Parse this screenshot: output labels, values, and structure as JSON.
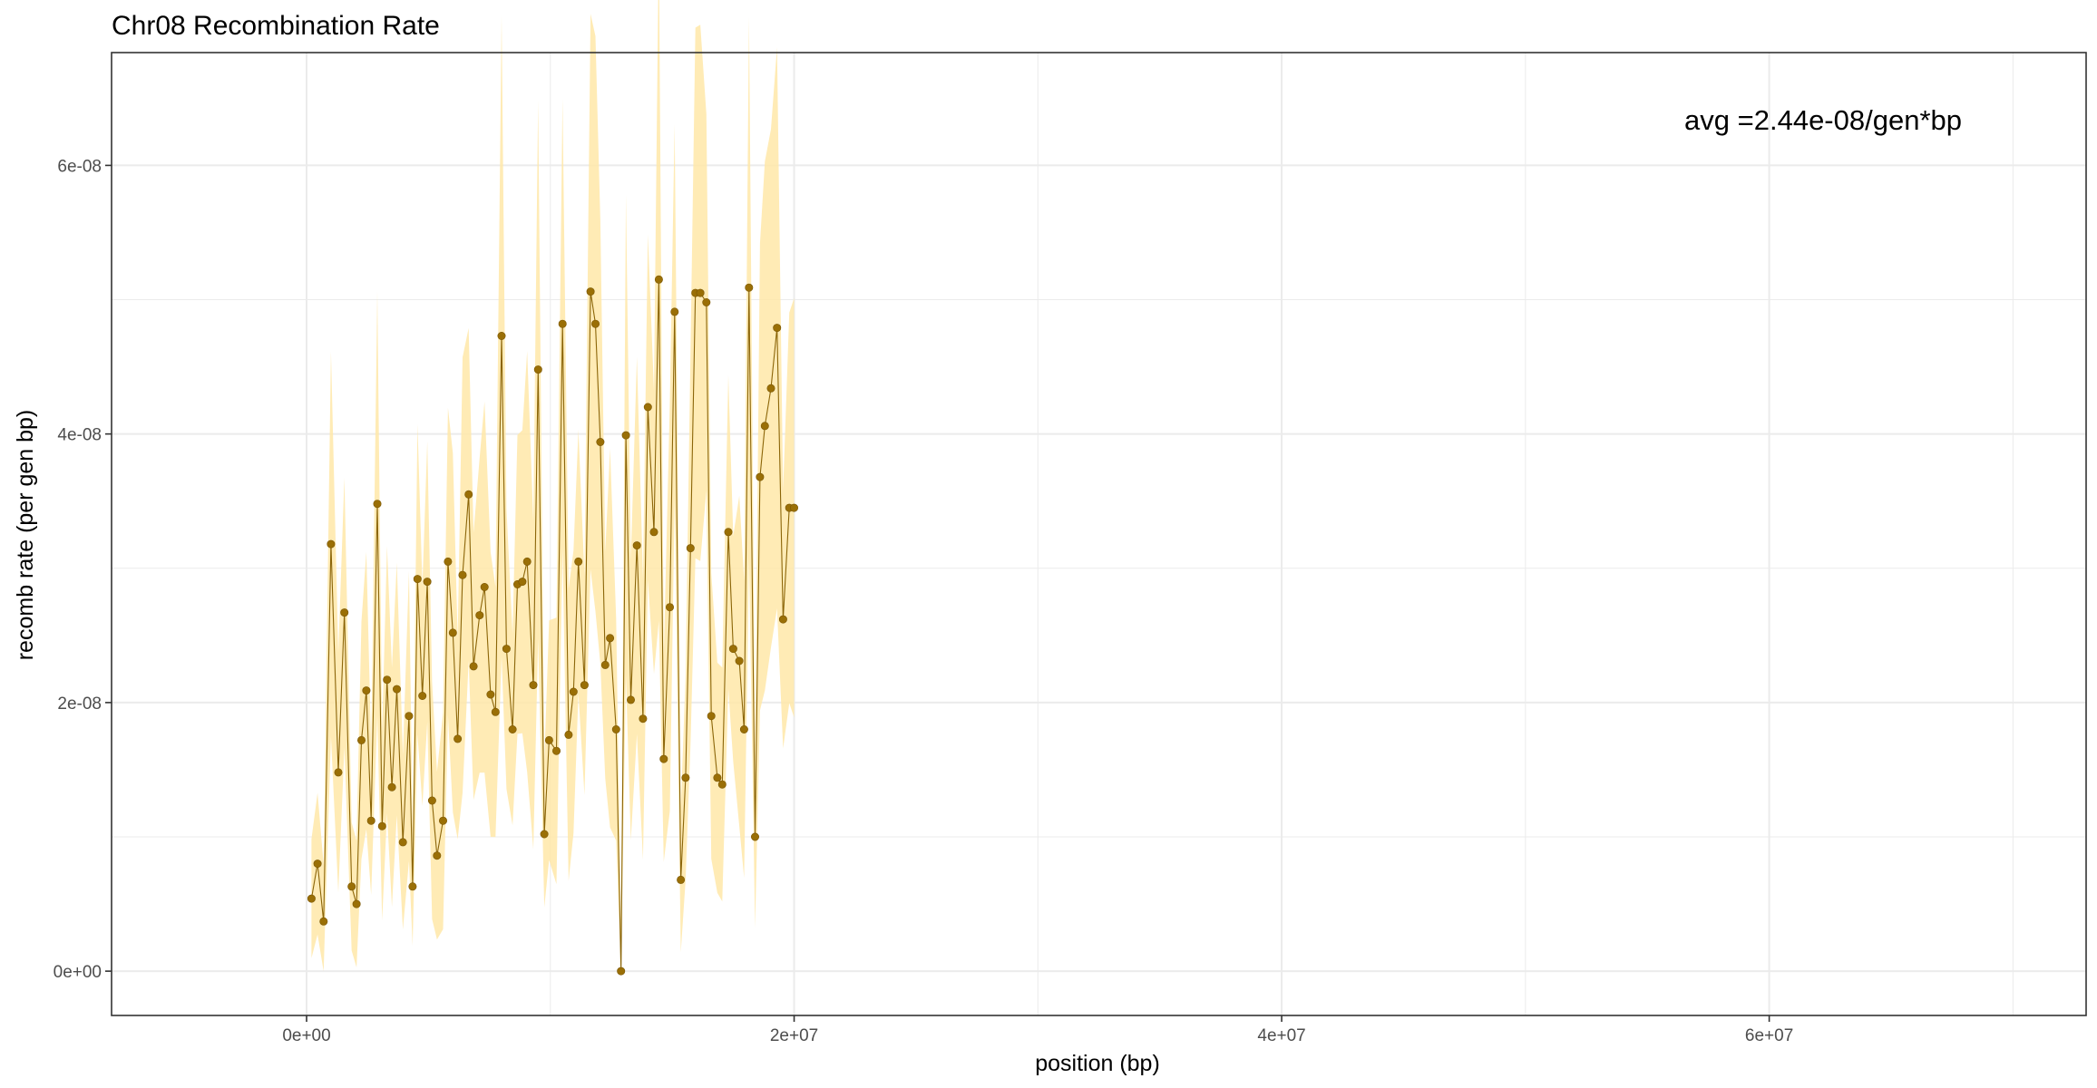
{
  "chart_data": {
    "type": "line",
    "title": "Chr08 Recombination Rate",
    "xlabel": "position (bp)",
    "ylabel": "recomb rate (per gen bp)",
    "annotation": "avg =2.44e-08/gen*bp",
    "xlim": [
      -8000000,
      73000000
    ],
    "ylim": [
      -3.3e-09,
      6.84e-08
    ],
    "x_ticks": [
      {
        "value": 0,
        "label": "0e+00"
      },
      {
        "value": 20000000,
        "label": "2e+07"
      },
      {
        "value": 40000000,
        "label": "4e+07"
      },
      {
        "value": 60000000,
        "label": "6e+07"
      }
    ],
    "y_ticks": [
      {
        "value": 0,
        "label": "0e+00"
      },
      {
        "value": 2e-08,
        "label": "2e-08"
      },
      {
        "value": 4e-08,
        "label": "4e-08"
      },
      {
        "value": 6e-08,
        "label": "6e-08"
      }
    ],
    "grid": true,
    "colors": {
      "line": "#8B6508",
      "point": "#9A6F06",
      "band": "#FFE7A8",
      "grid": "#EBEBEB",
      "panel_border": "#333333"
    },
    "series": [
      {
        "x": [
          200000,
          450000,
          700000,
          1000000,
          1300000,
          1550000,
          1850000,
          2050000,
          2250000,
          2450000,
          2650000,
          2900000,
          3100000,
          3300000,
          3500000,
          3700000,
          3950000,
          4200000,
          4350000,
          4550000,
          4750000,
          4950000,
          5150000,
          5350000,
          5600000,
          5800000,
          6000000,
          6200000,
          6400000,
          6650000,
          6850000,
          7100000,
          7300000,
          7550000,
          7750000,
          8000000,
          8200000,
          8450000,
          8650000,
          8850000,
          9050000,
          9300000,
          9500000,
          9750000,
          9950000,
          10250000,
          10500000,
          10750000,
          10950000,
          11150000,
          11400000,
          11650000,
          11850000,
          12050000,
          12250000,
          12450000,
          12700000,
          12900000,
          13100000,
          13300000,
          13550000,
          13800000,
          14000000,
          14250000,
          14450000,
          14650000,
          14900000,
          15100000,
          15350000,
          15550000,
          15750000,
          15950000,
          16150000,
          16400000,
          16600000,
          16850000,
          17050000,
          17300000,
          17500000,
          17750000,
          17950000,
          18150000,
          18400000,
          18600000,
          18800000,
          19050000,
          19300000,
          19550000,
          19800000,
          20000000
        ],
        "y": [
          5.4e-09,
          8e-09,
          3.7e-09,
          3.18e-08,
          1.48e-08,
          2.67e-08,
          6.3e-09,
          5e-09,
          1.72e-08,
          2.09e-08,
          1.12e-08,
          3.48e-08,
          1.08e-08,
          2.17e-08,
          1.37e-08,
          2.1e-08,
          9.6e-09,
          1.9e-08,
          6.3e-09,
          2.92e-08,
          2.05e-08,
          2.9e-08,
          1.27e-08,
          8.6e-09,
          1.12e-08,
          3.05e-08,
          2.52e-08,
          1.73e-08,
          2.95e-08,
          3.55e-08,
          2.27e-08,
          2.65e-08,
          2.86e-08,
          2.06e-08,
          1.93e-08,
          4.73e-08,
          2.4e-08,
          1.8e-08,
          2.88e-08,
          2.9e-08,
          3.05e-08,
          2.13e-08,
          4.48e-08,
          1.02e-08,
          1.72e-08,
          1.64e-08,
          4.82e-08,
          1.76e-08,
          2.08e-08,
          3.05e-08,
          2.13e-08,
          5.06e-08,
          4.82e-08,
          3.94e-08,
          2.28e-08,
          2.48e-08,
          1.8e-08,
          0.0,
          3.99e-08,
          2.02e-08,
          3.17e-08,
          1.88e-08,
          4.2e-08,
          3.27e-08,
          5.15e-08,
          1.58e-08,
          2.71e-08,
          4.91e-08,
          6.8e-09,
          1.44e-08,
          3.15e-08,
          5.05e-08,
          5.05e-08,
          4.98e-08,
          1.9e-08,
          1.44e-08,
          1.39e-08,
          3.27e-08,
          2.4e-08,
          2.31e-08,
          1.8e-08,
          5.09e-08,
          1e-08,
          3.68e-08,
          4.06e-08,
          4.34e-08,
          4.79e-08,
          2.62e-08,
          3.45e-08,
          3.45e-08
        ]
      }
    ]
  }
}
